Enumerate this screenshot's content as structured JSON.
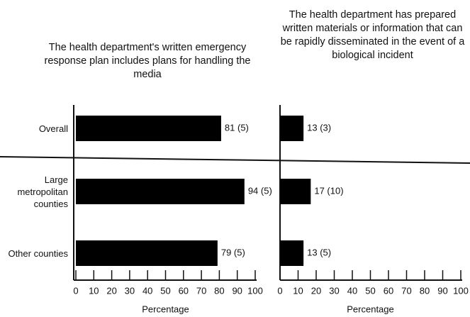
{
  "chart_data": [
    {
      "type": "barh",
      "title": "The health department's written emergency response plan includes plans for handling the media",
      "categories": [
        "Overall",
        "Large metropolitan counties",
        "Other counties"
      ],
      "values": [
        81,
        94,
        79
      ],
      "value_labels": [
        "81 (5)",
        "94 (5)",
        "79 (5)"
      ],
      "color": "#000000",
      "xlim": [
        0,
        100
      ],
      "xticks": [
        0,
        10,
        20,
        30,
        40,
        50,
        60,
        70,
        80,
        90,
        100
      ],
      "xlabel": "Percentage"
    },
    {
      "type": "barh",
      "title": "The health department has prepared written materials or information that can be rapidly disseminated in the event of a biological incident",
      "values": [
        13,
        17,
        13
      ],
      "value_labels": [
        "13 (3)",
        "17 (10)",
        "13 (5)"
      ],
      "color": "#000000",
      "xlim": [
        0,
        100
      ],
      "xticks": [
        0,
        10,
        20,
        30,
        40,
        50,
        60,
        70,
        80,
        90,
        100
      ],
      "xlabel": "Percentage"
    }
  ]
}
